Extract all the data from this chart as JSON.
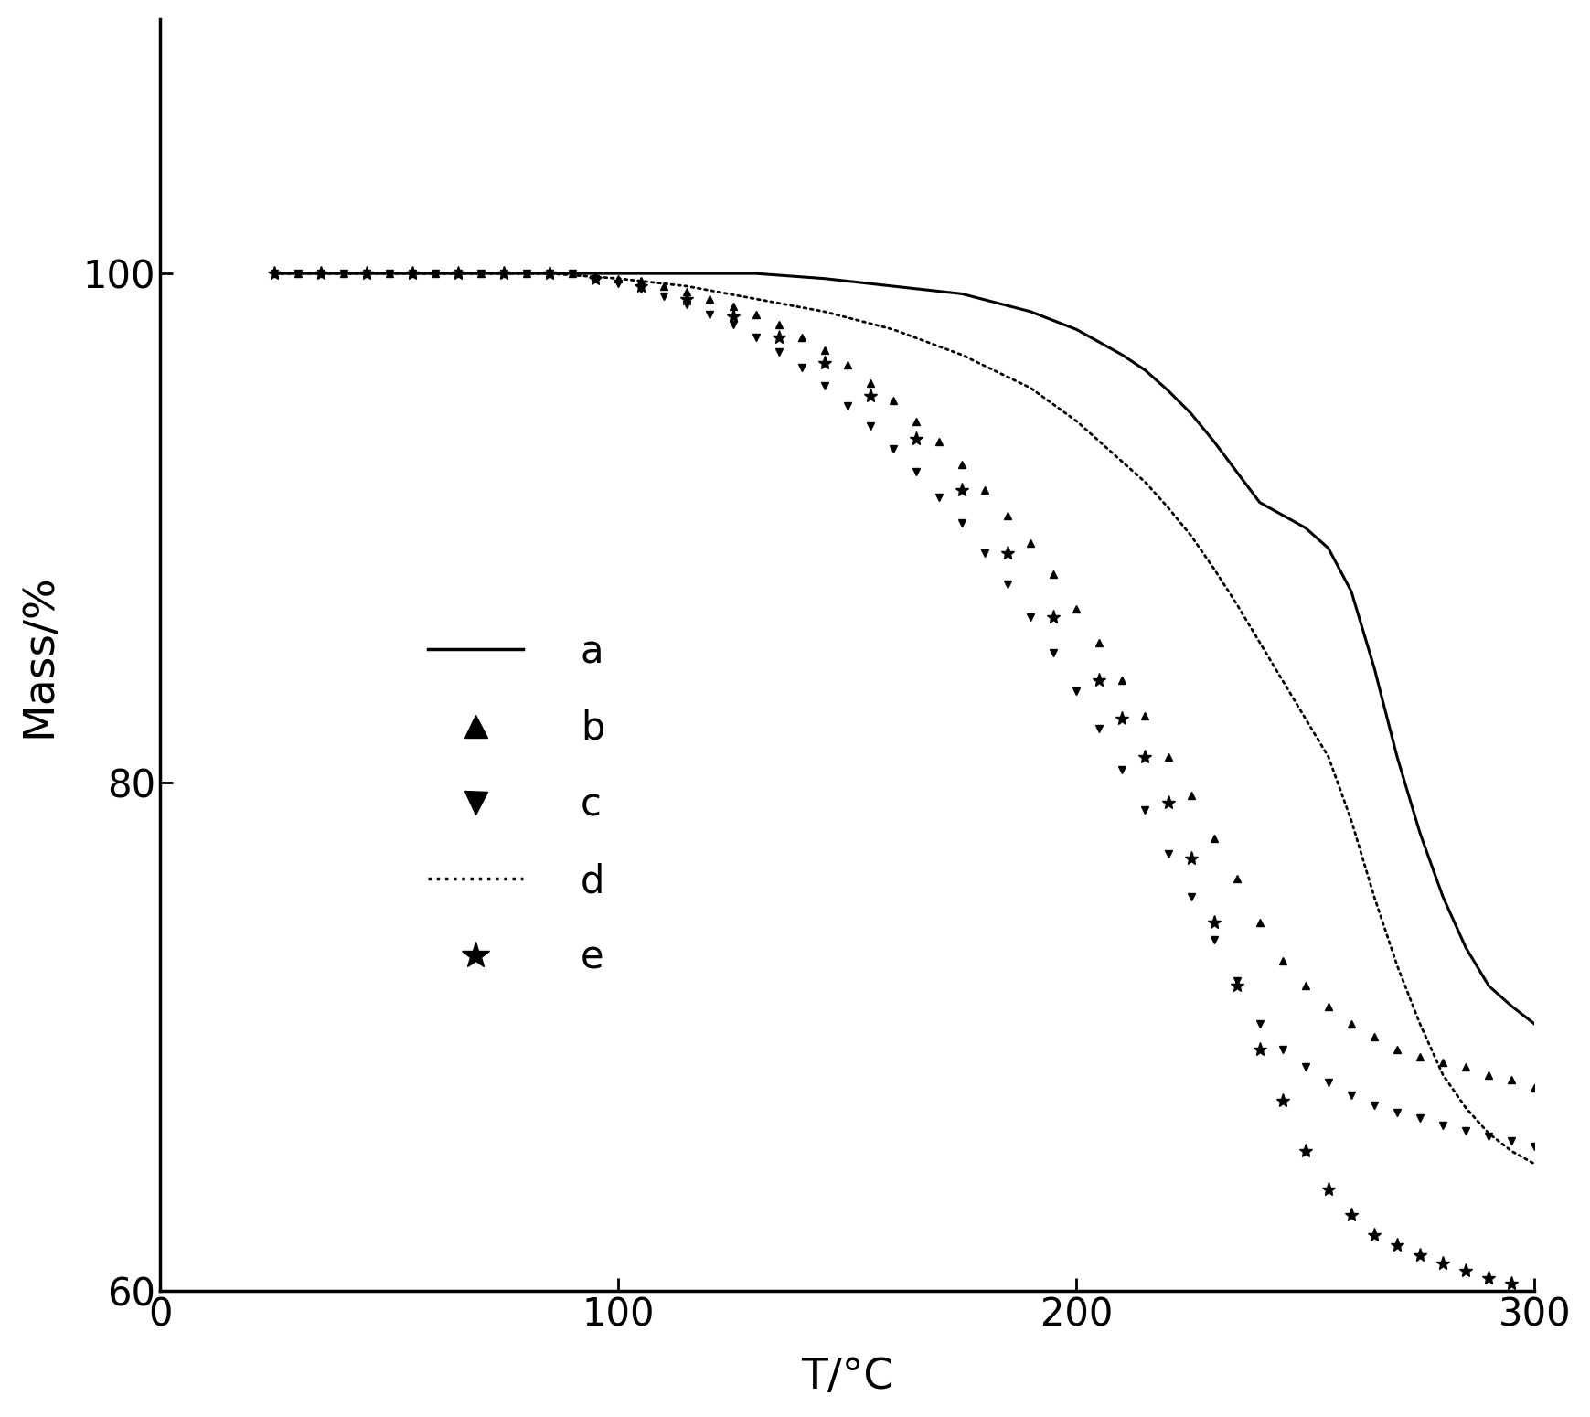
{
  "xlabel": "T/°C",
  "ylabel": "Mass/%",
  "xlim": [
    0,
    300
  ],
  "ylim": [
    60,
    110
  ],
  "xticks": [
    0,
    100,
    200,
    300
  ],
  "yticks": [
    60,
    80,
    100
  ],
  "background_color": "#ffffff",
  "line_color": "#000000",
  "series_a": {
    "x": [
      25,
      40,
      55,
      70,
      85,
      100,
      115,
      130,
      145,
      160,
      175,
      190,
      200,
      210,
      215,
      220,
      225,
      230,
      235,
      240,
      245,
      250,
      255,
      260,
      265,
      270,
      275,
      280,
      285,
      290,
      295,
      300
    ],
    "y": [
      100.0,
      100.0,
      100.0,
      100.0,
      100.0,
      100.0,
      100.0,
      100.0,
      99.8,
      99.5,
      99.2,
      98.5,
      97.8,
      96.8,
      96.2,
      95.4,
      94.5,
      93.4,
      92.2,
      91.0,
      90.5,
      90.0,
      89.2,
      87.5,
      84.5,
      81.0,
      78.0,
      75.5,
      73.5,
      72.0,
      71.2,
      70.5
    ]
  },
  "series_b": {
    "x": [
      25,
      30,
      35,
      40,
      45,
      50,
      55,
      60,
      65,
      70,
      75,
      80,
      85,
      90,
      95,
      100,
      105,
      110,
      115,
      120,
      125,
      130,
      135,
      140,
      145,
      150,
      155,
      160,
      165,
      170,
      175,
      180,
      185,
      190,
      195,
      200,
      205,
      210,
      215,
      220,
      225,
      230,
      235,
      240,
      245,
      250,
      255,
      260,
      265,
      270,
      275,
      280,
      285,
      290,
      295,
      300
    ],
    "y": [
      100.0,
      100.0,
      100.0,
      100.0,
      100.0,
      100.0,
      100.0,
      100.0,
      100.0,
      100.0,
      100.0,
      100.0,
      100.0,
      100.0,
      99.9,
      99.8,
      99.7,
      99.5,
      99.3,
      99.0,
      98.7,
      98.4,
      98.0,
      97.5,
      97.0,
      96.4,
      95.7,
      95.0,
      94.2,
      93.4,
      92.5,
      91.5,
      90.5,
      89.4,
      88.2,
      86.8,
      85.5,
      84.0,
      82.6,
      81.0,
      79.5,
      77.8,
      76.2,
      74.5,
      73.0,
      72.0,
      71.2,
      70.5,
      70.0,
      69.5,
      69.2,
      69.0,
      68.8,
      68.5,
      68.3,
      68.0
    ]
  },
  "series_c": {
    "x": [
      25,
      30,
      35,
      40,
      45,
      50,
      55,
      60,
      65,
      70,
      75,
      80,
      85,
      90,
      95,
      100,
      105,
      110,
      115,
      120,
      125,
      130,
      135,
      140,
      145,
      150,
      155,
      160,
      165,
      170,
      175,
      180,
      185,
      190,
      195,
      200,
      205,
      210,
      215,
      220,
      225,
      230,
      235,
      240,
      245,
      250,
      255,
      260,
      265,
      270,
      275,
      280,
      285,
      290,
      295,
      300
    ],
    "y": [
      100.0,
      100.0,
      100.0,
      100.0,
      100.0,
      100.0,
      100.0,
      100.0,
      100.0,
      100.0,
      100.0,
      100.0,
      100.0,
      100.0,
      99.8,
      99.6,
      99.4,
      99.1,
      98.8,
      98.4,
      98.0,
      97.5,
      96.9,
      96.3,
      95.6,
      94.8,
      94.0,
      93.1,
      92.2,
      91.2,
      90.2,
      89.0,
      87.8,
      86.5,
      85.1,
      83.6,
      82.1,
      80.5,
      78.9,
      77.2,
      75.5,
      73.8,
      72.2,
      70.5,
      69.5,
      68.8,
      68.2,
      67.7,
      67.3,
      67.0,
      66.8,
      66.5,
      66.3,
      66.1,
      65.9,
      65.7
    ]
  },
  "series_d": {
    "x": [
      25,
      40,
      55,
      70,
      85,
      100,
      115,
      130,
      145,
      160,
      175,
      190,
      200,
      210,
      215,
      220,
      225,
      230,
      235,
      240,
      245,
      250,
      255,
      260,
      265,
      270,
      275,
      280,
      285,
      290,
      295,
      300
    ],
    "y": [
      100.0,
      100.0,
      100.0,
      100.0,
      100.0,
      99.8,
      99.5,
      99.0,
      98.5,
      97.8,
      96.8,
      95.5,
      94.2,
      92.6,
      91.8,
      90.8,
      89.7,
      88.4,
      87.0,
      85.5,
      84.0,
      82.5,
      81.0,
      78.5,
      75.5,
      72.8,
      70.5,
      68.5,
      67.2,
      66.2,
      65.5,
      65.0
    ]
  },
  "series_e": {
    "x": [
      25,
      35,
      45,
      55,
      65,
      75,
      85,
      95,
      105,
      115,
      125,
      135,
      145,
      155,
      165,
      175,
      185,
      195,
      205,
      210,
      215,
      220,
      225,
      230,
      235,
      240,
      245,
      250,
      255,
      260,
      265,
      270,
      275,
      280,
      285,
      290,
      295
    ],
    "y": [
      100.0,
      100.0,
      100.0,
      100.0,
      100.0,
      100.0,
      100.0,
      99.8,
      99.5,
      99.0,
      98.3,
      97.5,
      96.5,
      95.2,
      93.5,
      91.5,
      89.0,
      86.5,
      84.0,
      82.5,
      81.0,
      79.2,
      77.0,
      74.5,
      72.0,
      69.5,
      67.5,
      65.5,
      64.0,
      63.0,
      62.2,
      61.8,
      61.4,
      61.1,
      60.8,
      60.5,
      60.3
    ]
  }
}
